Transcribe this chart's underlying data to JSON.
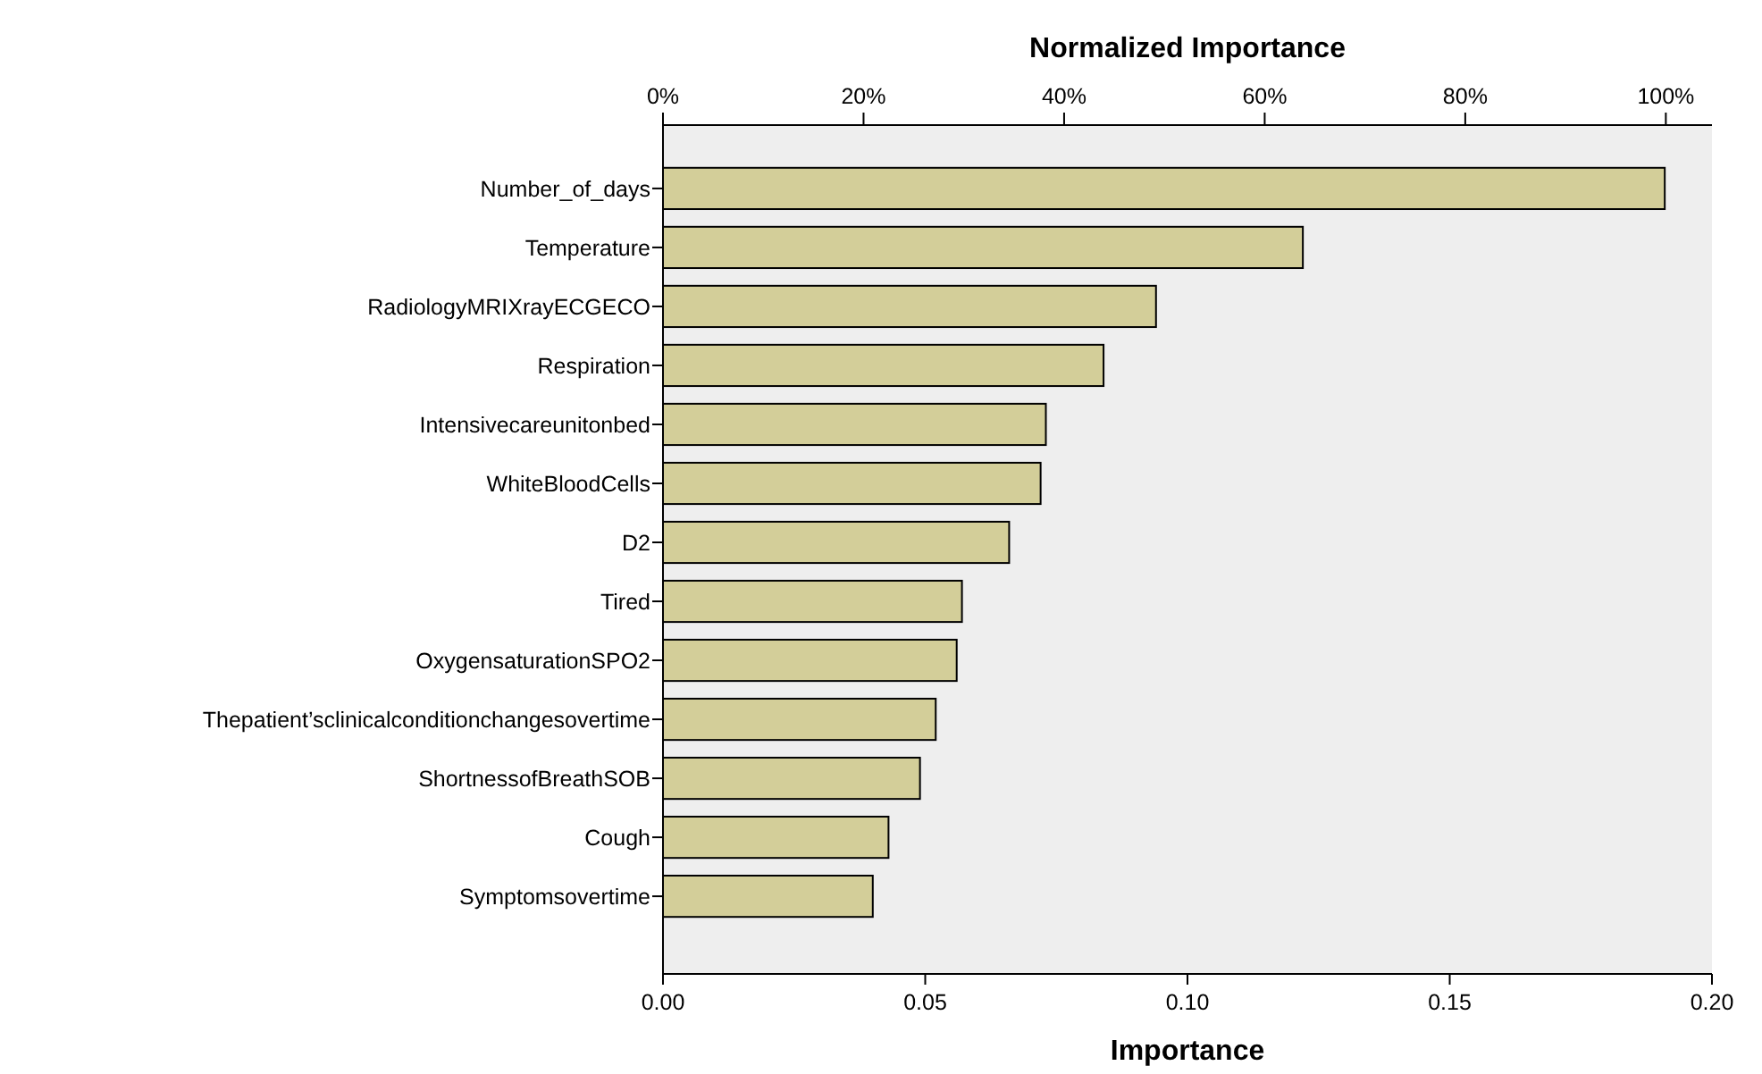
{
  "chart_data": {
    "type": "bar",
    "orientation": "horizontal",
    "xlabel": "Importance",
    "x2label": "Normalized Importance",
    "categories": [
      "Number_of_days",
      "Temperature",
      "RadiologyMRIXrayECGECO",
      "Respiration",
      "Intensivecareunitonbed",
      "WhiteBloodCells",
      "D2",
      "Tired",
      "OxygensaturationSPO2",
      "Thepatient’sclinicalconditionchangesovertime",
      "ShortnessofBreathSOB",
      "Cough",
      "Symptomsovertime"
    ],
    "values": [
      0.191,
      0.122,
      0.094,
      0.084,
      0.073,
      0.072,
      0.066,
      0.057,
      0.056,
      0.052,
      0.049,
      0.043,
      0.04
    ],
    "color": "#d3ce99",
    "xlim": [
      0,
      0.2
    ],
    "xticks": [
      {
        "value": 0,
        "label": "0.00"
      },
      {
        "value": 0.05,
        "label": "0.05"
      },
      {
        "value": 0.1,
        "label": "0.10"
      },
      {
        "value": 0.15,
        "label": "0.15"
      },
      {
        "value": 0.2,
        "label": "0.20"
      }
    ],
    "x2lim": [
      0,
      104.6
    ],
    "x2ticks": [
      {
        "value": 0,
        "label": "0%"
      },
      {
        "value": 20,
        "label": "20%"
      },
      {
        "value": 40,
        "label": "40%"
      },
      {
        "value": 60,
        "label": "60%"
      },
      {
        "value": 80,
        "label": "80%"
      },
      {
        "value": 100,
        "label": "100%"
      }
    ],
    "grid": false
  }
}
